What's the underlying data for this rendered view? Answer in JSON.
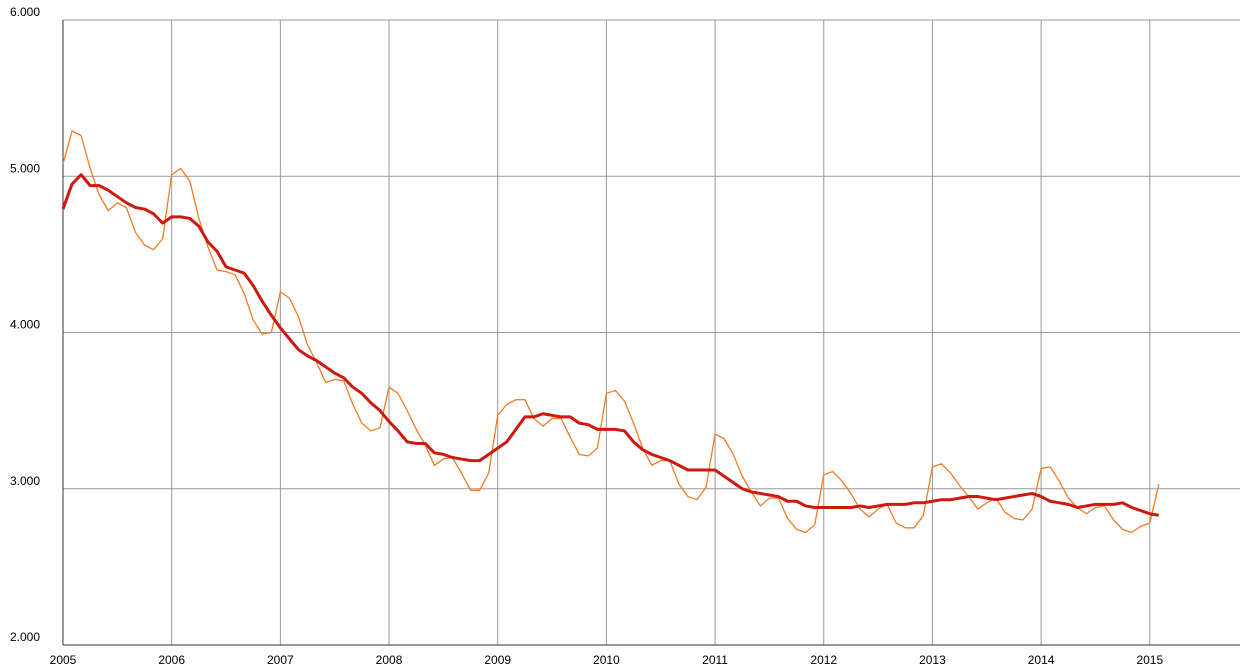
{
  "chart_data": {
    "type": "line",
    "x": [
      2005,
      2005.083,
      2005.167,
      2005.25,
      2005.333,
      2005.417,
      2005.5,
      2005.583,
      2005.667,
      2005.75,
      2005.833,
      2005.917,
      2006,
      2006.083,
      2006.167,
      2006.25,
      2006.333,
      2006.417,
      2006.5,
      2006.583,
      2006.667,
      2006.75,
      2006.833,
      2006.917,
      2007,
      2007.083,
      2007.167,
      2007.25,
      2007.333,
      2007.417,
      2007.5,
      2007.583,
      2007.667,
      2007.75,
      2007.833,
      2007.917,
      2008,
      2008.083,
      2008.167,
      2008.25,
      2008.333,
      2008.417,
      2008.5,
      2008.583,
      2008.667,
      2008.75,
      2008.833,
      2008.917,
      2009,
      2009.083,
      2009.167,
      2009.25,
      2009.333,
      2009.417,
      2009.5,
      2009.583,
      2009.667,
      2009.75,
      2009.833,
      2009.917,
      2010,
      2010.083,
      2010.167,
      2010.25,
      2010.333,
      2010.417,
      2010.5,
      2010.583,
      2010.667,
      2010.75,
      2010.833,
      2010.917,
      2011,
      2011.083,
      2011.167,
      2011.25,
      2011.333,
      2011.417,
      2011.5,
      2011.583,
      2011.667,
      2011.75,
      2011.833,
      2011.917,
      2012,
      2012.083,
      2012.167,
      2012.25,
      2012.333,
      2012.417,
      2012.5,
      2012.583,
      2012.667,
      2012.75,
      2012.833,
      2012.917,
      2013,
      2013.083,
      2013.167,
      2013.25,
      2013.333,
      2013.417,
      2013.5,
      2013.583,
      2013.667,
      2013.75,
      2013.833,
      2013.917,
      2014,
      2014.083,
      2014.167,
      2014.25,
      2014.333,
      2014.417,
      2014.5,
      2014.583,
      2014.667,
      2014.75,
      2014.833,
      2014.917,
      2015,
      2015.083
    ],
    "series": [
      {
        "color": "#f07c28",
        "width": 1.3,
        "values": [
          5080,
          5290,
          5260,
          5050,
          4880,
          4780,
          4830,
          4800,
          4640,
          4560,
          4530,
          4600,
          5010,
          5050,
          4970,
          4730,
          4550,
          4400,
          4390,
          4370,
          4250,
          4080,
          3990,
          4000,
          4260,
          4220,
          4100,
          3920,
          3810,
          3680,
          3700,
          3690,
          3540,
          3420,
          3370,
          3390,
          3650,
          3610,
          3500,
          3380,
          3280,
          3150,
          3190,
          3200,
          3100,
          2990,
          2990,
          3100,
          3470,
          3540,
          3570,
          3570,
          3450,
          3400,
          3450,
          3450,
          3330,
          3220,
          3210,
          3260,
          3610,
          3630,
          3560,
          3420,
          3260,
          3150,
          3180,
          3180,
          3030,
          2950,
          2930,
          3010,
          3350,
          3320,
          3220,
          3080,
          2980,
          2890,
          2940,
          2940,
          2810,
          2740,
          2720,
          2770,
          3090,
          3110,
          3050,
          2970,
          2870,
          2820,
          2870,
          2900,
          2780,
          2750,
          2750,
          2830,
          3140,
          3160,
          3100,
          3020,
          2950,
          2870,
          2910,
          2940,
          2850,
          2810,
          2800,
          2870,
          3130,
          3140,
          3050,
          2940,
          2880,
          2840,
          2880,
          2890,
          2800,
          2740,
          2720,
          2760,
          2780,
          3030
        ]
      },
      {
        "color": "#cc1a10",
        "width": 3,
        "values": [
          4790,
          4950,
          5010,
          4940,
          4940,
          4910,
          4870,
          4830,
          4800,
          4790,
          4760,
          4700,
          4740,
          4740,
          4730,
          4680,
          4580,
          4520,
          4420,
          4400,
          4380,
          4300,
          4200,
          4110,
          4030,
          3960,
          3890,
          3850,
          3820,
          3780,
          3740,
          3710,
          3650,
          3610,
          3550,
          3500,
          3430,
          3370,
          3300,
          3290,
          3290,
          3230,
          3220,
          3200,
          3190,
          3180,
          3180,
          3220,
          3260,
          3300,
          3380,
          3460,
          3460,
          3480,
          3470,
          3460,
          3460,
          3420,
          3410,
          3380,
          3380,
          3380,
          3370,
          3300,
          3250,
          3220,
          3200,
          3180,
          3150,
          3120,
          3120,
          3120,
          3120,
          3080,
          3040,
          3000,
          2980,
          2970,
          2960,
          2950,
          2920,
          2920,
          2890,
          2880,
          2880,
          2880,
          2880,
          2880,
          2890,
          2880,
          2890,
          2900,
          2900,
          2900,
          2910,
          2910,
          2920,
          2930,
          2930,
          2940,
          2950,
          2950,
          2940,
          2930,
          2940,
          2950,
          2960,
          2970,
          2950,
          2920,
          2910,
          2900,
          2880,
          2890,
          2900,
          2900,
          2900,
          2910,
          2880,
          2860,
          2840,
          2830
        ]
      }
    ],
    "xlim": [
      2005,
      2015.83
    ],
    "xticks": [
      2005,
      2006,
      2007,
      2008,
      2009,
      2010,
      2011,
      2012,
      2013,
      2014,
      2015
    ],
    "ylim": [
      2000,
      6000
    ],
    "yticks": [
      {
        "value": 2000,
        "label": "2.000"
      },
      {
        "value": 3000,
        "label": "3.000"
      },
      {
        "value": 4000,
        "label": "4.000"
      },
      {
        "value": 5000,
        "label": "5.000"
      },
      {
        "value": 6000,
        "label": "6.000"
      }
    ],
    "grid": true
  }
}
